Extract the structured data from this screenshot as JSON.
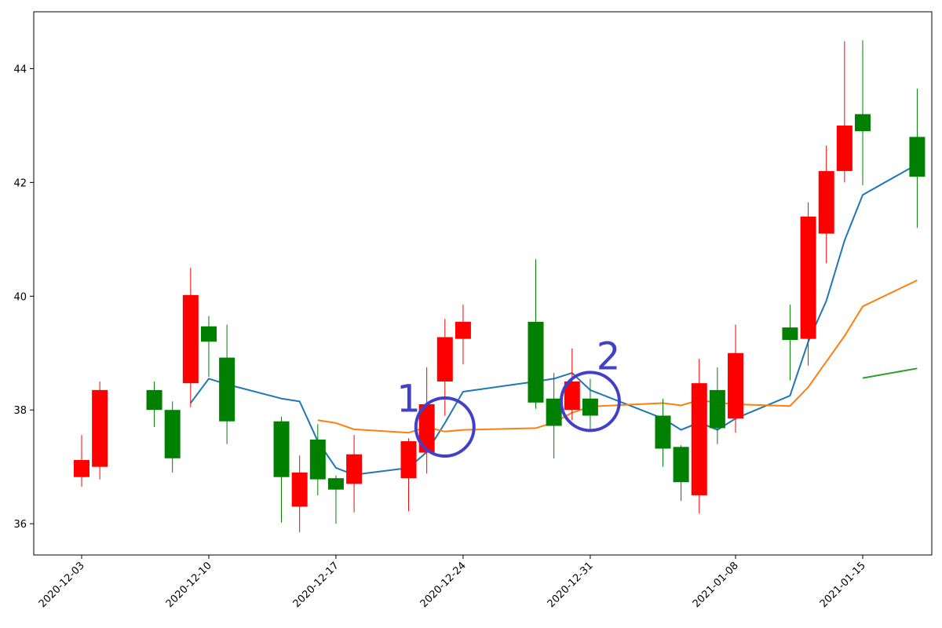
{
  "chart_data": {
    "type": "candlestick",
    "title": "",
    "xlabel": "",
    "ylabel": "",
    "ylim": [
      35.45,
      45.0
    ],
    "yticks": [
      36,
      38,
      40,
      42,
      44
    ],
    "xtick_labels": [
      "2020-12-03",
      "2020-12-10",
      "2020-12-17",
      "2020-12-24",
      "2020-12-31",
      "2021-01-08",
      "2021-01-15"
    ],
    "grid": false,
    "legend": "none",
    "colors": {
      "up": "#008000",
      "down": "#ff0000",
      "ma_short": "#1f77b4",
      "ma_medium": "#ff7f0e",
      "ma_long": "#2ca02c",
      "annotation": "#4040c8"
    },
    "candles": [
      {
        "date": "2020-12-03",
        "open": 37.12,
        "close": 36.82,
        "high": 37.56,
        "low": 36.65
      },
      {
        "date": "2020-12-04",
        "open": 38.35,
        "close": 37.0,
        "high": 38.5,
        "low": 36.78
      },
      {
        "date": "2020-12-07",
        "open": 38.0,
        "close": 38.35,
        "high": 38.5,
        "low": 37.7
      },
      {
        "date": "2020-12-08",
        "open": 37.15,
        "close": 38.0,
        "high": 38.15,
        "low": 36.9
      },
      {
        "date": "2020-12-09",
        "open": 40.02,
        "close": 38.47,
        "high": 40.5,
        "low": 38.05
      },
      {
        "date": "2020-12-10",
        "open": 39.2,
        "close": 39.47,
        "high": 39.65,
        "low": 38.58
      },
      {
        "date": "2020-12-11",
        "open": 37.8,
        "close": 38.92,
        "high": 39.5,
        "low": 37.4
      },
      {
        "date": "2020-12-14",
        "open": 36.82,
        "close": 37.8,
        "high": 37.88,
        "low": 36.02
      },
      {
        "date": "2020-12-15",
        "open": 36.9,
        "close": 36.3,
        "high": 37.2,
        "low": 35.85
      },
      {
        "date": "2020-12-16",
        "open": 36.78,
        "close": 37.48,
        "high": 37.75,
        "low": 36.5
      },
      {
        "date": "2020-12-17",
        "open": 36.6,
        "close": 36.8,
        "high": 36.85,
        "low": 36.0
      },
      {
        "date": "2020-12-18",
        "open": 37.22,
        "close": 36.7,
        "high": 37.56,
        "low": 36.2
      },
      {
        "date": "2020-12-21",
        "open": 37.45,
        "close": 36.8,
        "high": 37.5,
        "low": 36.22
      },
      {
        "date": "2020-12-22",
        "open": 38.1,
        "close": 37.25,
        "high": 38.75,
        "low": 36.88
      },
      {
        "date": "2020-12-23",
        "open": 39.28,
        "close": 38.5,
        "high": 39.6,
        "low": 37.9
      },
      {
        "date": "2020-12-24",
        "open": 39.55,
        "close": 39.25,
        "high": 39.85,
        "low": 38.8
      },
      {
        "date": "2020-12-28",
        "open": 38.13,
        "close": 39.55,
        "high": 40.65,
        "low": 38.02
      },
      {
        "date": "2020-12-29",
        "open": 37.72,
        "close": 38.2,
        "high": 38.65,
        "low": 37.15
      },
      {
        "date": "2020-12-30",
        "open": 38.5,
        "close": 38.0,
        "high": 39.08,
        "low": 37.82
      },
      {
        "date": "2020-12-31",
        "open": 37.9,
        "close": 38.2,
        "high": 38.55,
        "low": 37.65
      },
      {
        "date": "2021-01-04",
        "open": 37.32,
        "close": 37.9,
        "high": 38.2,
        "low": 37.0
      },
      {
        "date": "2021-01-05",
        "open": 36.73,
        "close": 37.35,
        "high": 37.38,
        "low": 36.4
      },
      {
        "date": "2021-01-06",
        "open": 38.47,
        "close": 36.5,
        "high": 38.9,
        "low": 36.18
      },
      {
        "date": "2021-01-07",
        "open": 37.68,
        "close": 38.35,
        "high": 38.75,
        "low": 37.4
      },
      {
        "date": "2021-01-08",
        "open": 39.0,
        "close": 37.85,
        "high": 39.5,
        "low": 37.6
      },
      {
        "date": "2021-01-11",
        "open": 39.23,
        "close": 39.45,
        "high": 39.85,
        "low": 38.52
      },
      {
        "date": "2021-01-12",
        "open": 41.4,
        "close": 39.25,
        "high": 41.65,
        "low": 38.78
      },
      {
        "date": "2021-01-13",
        "open": 42.2,
        "close": 41.1,
        "high": 42.65,
        "low": 40.58
      },
      {
        "date": "2021-01-14",
        "open": 43.0,
        "close": 42.2,
        "high": 44.48,
        "low": 42.0
      },
      {
        "date": "2021-01-15",
        "open": 42.9,
        "close": 43.2,
        "high": 44.5,
        "low": 41.95
      },
      {
        "date": "2021-01-18",
        "open": 42.1,
        "close": 42.8,
        "high": 43.65,
        "low": 41.2
      }
    ],
    "series": [
      {
        "values": [
          null,
          null,
          null,
          null,
          38.12,
          38.55,
          38.45,
          38.2,
          38.15,
          37.45,
          36.98,
          36.86,
          36.98,
          37.26,
          37.77,
          38.32,
          38.5,
          38.55,
          38.65,
          38.35,
          37.85,
          37.65,
          37.78,
          37.65,
          37.85,
          38.25,
          39.2,
          39.92,
          40.98,
          41.78,
          42.32
        ]
      },
      {
        "values": [
          null,
          null,
          null,
          null,
          null,
          null,
          null,
          null,
          null,
          37.82,
          37.77,
          37.66,
          37.6,
          37.7,
          37.62,
          37.65,
          37.68,
          37.78,
          37.95,
          38.06,
          38.12,
          38.08,
          38.17,
          38.13,
          38.1,
          38.07,
          38.4,
          38.85,
          39.3,
          39.82,
          40.28
        ]
      },
      {
        "values": [
          null,
          null,
          null,
          null,
          null,
          null,
          null,
          null,
          null,
          null,
          null,
          null,
          null,
          null,
          null,
          null,
          null,
          null,
          null,
          null,
          null,
          null,
          null,
          null,
          null,
          null,
          null,
          null,
          null,
          38.56,
          38.73
        ]
      }
    ],
    "annotations": [
      {
        "text": "1",
        "x": "2020-12-21",
        "y": 38.2
      },
      {
        "text": "2",
        "x": "2021-01-01",
        "y": 38.95
      }
    ],
    "highlight_circles": [
      {
        "x": "2020-12-23",
        "y": 37.7
      },
      {
        "x": "2020-12-31",
        "y": 38.15
      }
    ]
  }
}
